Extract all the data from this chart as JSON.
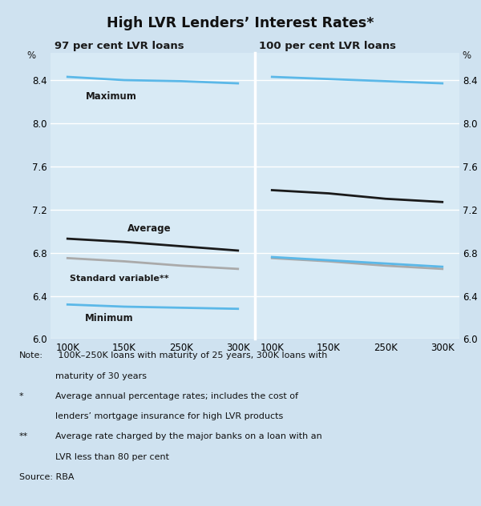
{
  "title": "High LVR Lenders’ Interest Rates*",
  "background_color": "#cfe2f0",
  "panel_bg": "#d8eaf5",
  "ylim": [
    6.0,
    8.65
  ],
  "yticks": [
    6.0,
    6.4,
    6.8,
    7.2,
    7.6,
    8.0,
    8.4
  ],
  "panel_titles": [
    "97 per cent LVR loans",
    "100 per cent LVR loans"
  ],
  "x_labels": [
    "100K",
    "150K",
    "250K",
    "300K"
  ],
  "x_values": [
    0,
    1,
    2,
    3
  ],
  "panel97": {
    "maximum": [
      8.43,
      8.4,
      8.39,
      8.37
    ],
    "average": [
      6.93,
      6.9,
      6.86,
      6.82
    ],
    "std_variable": [
      6.75,
      6.72,
      6.68,
      6.65
    ],
    "minimum": [
      6.32,
      6.3,
      6.29,
      6.28
    ]
  },
  "panel100": {
    "maximum": [
      8.43,
      8.41,
      8.39,
      8.37
    ],
    "average": [
      7.38,
      7.35,
      7.3,
      7.27
    ],
    "std_variable": [
      6.75,
      6.72,
      6.68,
      6.65
    ],
    "minimum_blue": [
      6.76,
      6.73,
      6.7,
      6.67
    ]
  },
  "colors": {
    "maximum": "#5bb8e8",
    "average": "#1a1a1a",
    "std_variable": "#aaaaaa",
    "minimum": "#5bb8e8",
    "minimum_blue": "#5bb8e8"
  },
  "line_width": 2.0,
  "footnote_lines": [
    [
      "Note:",
      " 100K–250K loans with maturity of 25 years, 300K loans with"
    ],
    [
      "",
      "maturity of 30 years"
    ],
    [
      "*",
      "Average annual percentage rates; includes the cost of"
    ],
    [
      "",
      "lenders’ mortgage insurance for high LVR products"
    ],
    [
      "**",
      "Average rate charged by the major banks on a loan with an"
    ],
    [
      "",
      "LVR less than 80 per cent"
    ],
    [
      "Source: RBA",
      ""
    ]
  ]
}
